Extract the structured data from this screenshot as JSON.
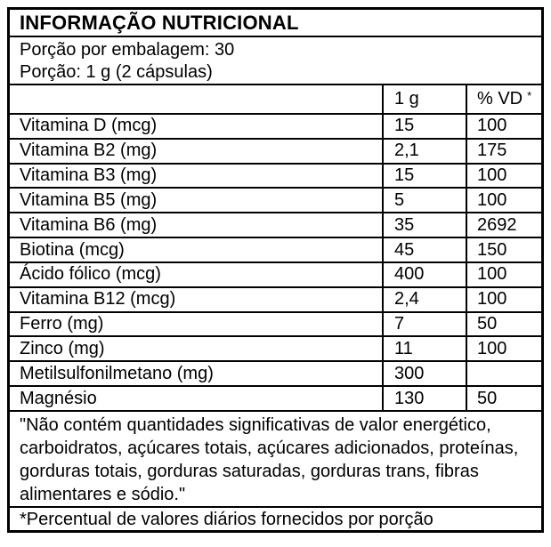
{
  "label": {
    "title": "INFORMAÇÃO NUTRICIONAL",
    "serving_lines": [
      "Porção por embalagem: 30",
      "Porção: 1 g (2 cápsulas)"
    ],
    "columns": {
      "amount": "1 g",
      "dv": "% VD",
      "dv_marker": "*"
    },
    "rows": [
      {
        "name": "Vitamina D (mcg)",
        "amount": "15",
        "dv": "100"
      },
      {
        "name": "Vitamina B2 (mg)",
        "amount": "2,1",
        "dv": "175"
      },
      {
        "name": "Vitamina B3 (mg)",
        "amount": "15",
        "dv": "100"
      },
      {
        "name": "Vitamina B5 (mg)",
        "amount": "5",
        "dv": "100"
      },
      {
        "name": "Vitamina B6 (mg)",
        "amount": "35",
        "dv": "2692"
      },
      {
        "name": "Biotina (mcg)",
        "amount": "45",
        "dv": "150"
      },
      {
        "name": "Ácido fólico (mcg)",
        "amount": "400",
        "dv": "100"
      },
      {
        "name": "Vitamina B12 (mcg)",
        "amount": "2,4",
        "dv": "100"
      },
      {
        "name": "Ferro (mg)",
        "amount": "7",
        "dv": "50"
      },
      {
        "name": "Zinco (mg)",
        "amount": "11",
        "dv": "100"
      },
      {
        "name": "Metilsulfonilmetano (mg)",
        "amount": "300",
        "dv": ""
      },
      {
        "name": "Magnésio",
        "amount": "130",
        "dv": "50"
      }
    ],
    "notes": [
      "\"Não contém quantidades significativas de valor energético, carboidratos, açúcares totais, açúcares adicionados, proteínas, gorduras totais, gorduras saturadas, gorduras trans, fibras alimentares e sódio.\"",
      "*Percentual de valores diários fornecidos por porção"
    ]
  },
  "colors": {
    "border": "#000000",
    "background": "#ffffff",
    "text": "#000000"
  }
}
